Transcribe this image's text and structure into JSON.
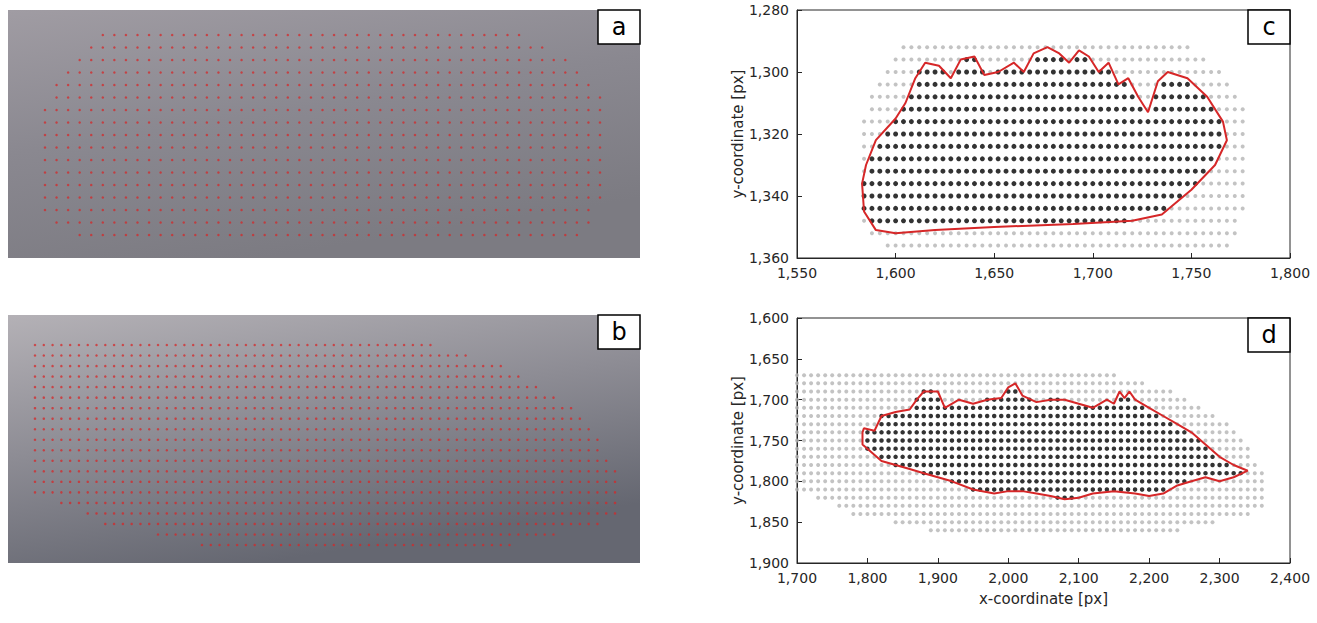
{
  "chart_data": [
    {
      "type": "image",
      "panel": "a"
    },
    {
      "type": "image",
      "panel": "b"
    },
    {
      "type": "scatter",
      "panel": "c",
      "y_label": "y-coordinate [px]",
      "xlim": [
        1550,
        1800
      ],
      "xticks": [
        1550,
        1600,
        1650,
        1700,
        1750,
        1800
      ],
      "ylim": [
        1360,
        1280
      ],
      "yticks": [
        1280,
        1300,
        1320,
        1340,
        1360
      ],
      "marker": "circle",
      "grid_points": {
        "spacing": 4,
        "color": "#b4b4b4",
        "inside_color": "#000000",
        "region": [
          [
            1608,
            1289
          ],
          [
            1742,
            1289
          ],
          [
            1765,
            1298
          ],
          [
            1778,
            1310
          ],
          [
            1778,
            1345
          ],
          [
            1770,
            1357
          ],
          [
            1595,
            1357
          ],
          [
            1582,
            1348
          ],
          [
            1582,
            1318
          ],
          [
            1590,
            1302
          ]
        ]
      },
      "outline": {
        "color": "#d62728",
        "line_style": "solid",
        "values": [
          [
            1585,
            1330
          ],
          [
            1590,
            1322
          ],
          [
            1600,
            1315
          ],
          [
            1605,
            1310
          ],
          [
            1610,
            1302
          ],
          [
            1615,
            1297
          ],
          [
            1622,
            1298
          ],
          [
            1628,
            1302
          ],
          [
            1633,
            1296
          ],
          [
            1640,
            1295
          ],
          [
            1645,
            1301
          ],
          [
            1652,
            1300
          ],
          [
            1660,
            1297
          ],
          [
            1665,
            1300
          ],
          [
            1670,
            1294
          ],
          [
            1677,
            1292
          ],
          [
            1683,
            1294
          ],
          [
            1688,
            1297
          ],
          [
            1693,
            1293
          ],
          [
            1698,
            1295
          ],
          [
            1703,
            1300
          ],
          [
            1708,
            1297
          ],
          [
            1713,
            1304
          ],
          [
            1718,
            1302
          ],
          [
            1723,
            1308
          ],
          [
            1728,
            1313
          ],
          [
            1733,
            1303
          ],
          [
            1738,
            1300
          ],
          [
            1748,
            1302
          ],
          [
            1758,
            1308
          ],
          [
            1766,
            1316
          ],
          [
            1768,
            1322
          ],
          [
            1762,
            1330
          ],
          [
            1750,
            1338
          ],
          [
            1735,
            1346
          ],
          [
            1720,
            1348
          ],
          [
            1690,
            1349
          ],
          [
            1650,
            1350
          ],
          [
            1620,
            1351
          ],
          [
            1600,
            1352
          ],
          [
            1590,
            1351
          ],
          [
            1584,
            1345
          ],
          [
            1583,
            1336
          ]
        ]
      }
    },
    {
      "type": "scatter",
      "panel": "d",
      "x_label": "x-coordinate [px]",
      "y_label": "y-coordinate [px]",
      "xlim": [
        1700,
        2400
      ],
      "xticks": [
        1700,
        1800,
        1900,
        2000,
        2100,
        2200,
        2300,
        2400
      ],
      "ylim": [
        1900,
        1600
      ],
      "yticks": [
        1600,
        1650,
        1700,
        1750,
        1800,
        1850,
        1900
      ],
      "marker": "circle",
      "grid_points": {
        "spacing": 10,
        "color": "#b4b4b4",
        "inside_color": "#000000",
        "region": [
          [
            1700,
            1668
          ],
          [
            2150,
            1668
          ],
          [
            2250,
            1695
          ],
          [
            2330,
            1740
          ],
          [
            2362,
            1790
          ],
          [
            2362,
            1835
          ],
          [
            2300,
            1850
          ],
          [
            2230,
            1862
          ],
          [
            1900,
            1862
          ],
          [
            1780,
            1840
          ],
          [
            1700,
            1810
          ]
        ]
      },
      "outline": {
        "color": "#d62728",
        "line_style": "solid",
        "values": [
          [
            1793,
            1740
          ],
          [
            1795,
            1735
          ],
          [
            1810,
            1738
          ],
          [
            1820,
            1720
          ],
          [
            1840,
            1715
          ],
          [
            1860,
            1712
          ],
          [
            1870,
            1700
          ],
          [
            1880,
            1690
          ],
          [
            1900,
            1690
          ],
          [
            1910,
            1710
          ],
          [
            1930,
            1700
          ],
          [
            1950,
            1705
          ],
          [
            1970,
            1700
          ],
          [
            1990,
            1698
          ],
          [
            2000,
            1685
          ],
          [
            2010,
            1680
          ],
          [
            2020,
            1695
          ],
          [
            2040,
            1703
          ],
          [
            2060,
            1700
          ],
          [
            2080,
            1700
          ],
          [
            2100,
            1705
          ],
          [
            2120,
            1710
          ],
          [
            2140,
            1700
          ],
          [
            2150,
            1705
          ],
          [
            2158,
            1690
          ],
          [
            2165,
            1698
          ],
          [
            2172,
            1690
          ],
          [
            2180,
            1700
          ],
          [
            2200,
            1710
          ],
          [
            2220,
            1720
          ],
          [
            2240,
            1730
          ],
          [
            2260,
            1740
          ],
          [
            2280,
            1755
          ],
          [
            2300,
            1770
          ],
          [
            2320,
            1780
          ],
          [
            2340,
            1787
          ],
          [
            2320,
            1795
          ],
          [
            2300,
            1800
          ],
          [
            2280,
            1795
          ],
          [
            2260,
            1800
          ],
          [
            2240,
            1805
          ],
          [
            2220,
            1815
          ],
          [
            2200,
            1818
          ],
          [
            2180,
            1815
          ],
          [
            2150,
            1812
          ],
          [
            2120,
            1815
          ],
          [
            2100,
            1820
          ],
          [
            2080,
            1822
          ],
          [
            2060,
            1818
          ],
          [
            2040,
            1815
          ],
          [
            2020,
            1812
          ],
          [
            2000,
            1812
          ],
          [
            1980,
            1815
          ],
          [
            1950,
            1810
          ],
          [
            1920,
            1800
          ],
          [
            1900,
            1795
          ],
          [
            1880,
            1790
          ],
          [
            1860,
            1785
          ],
          [
            1840,
            1780
          ],
          [
            1820,
            1775
          ],
          [
            1800,
            1760
          ],
          [
            1793,
            1755
          ]
        ]
      }
    }
  ]
}
